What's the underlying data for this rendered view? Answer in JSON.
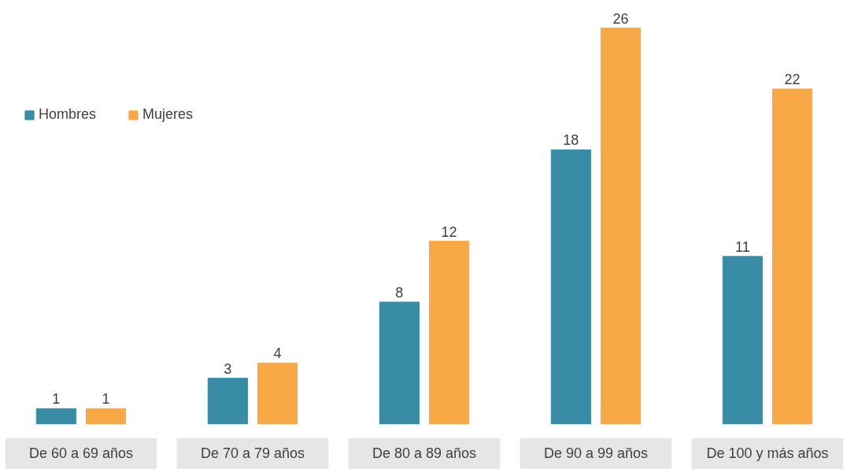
{
  "chart_data": {
    "type": "bar",
    "categories": [
      "De 60 a 69 años",
      "De 70 a 79 años",
      "De 80 a 89 años",
      "De 90 a 99 años",
      "De 100 y más años"
    ],
    "series": [
      {
        "name": "Hombres",
        "color": "#388ca6",
        "values": [
          1,
          3,
          8,
          18,
          11
        ]
      },
      {
        "name": "Mujeres",
        "color": "#f9a846",
        "values": [
          1,
          4,
          12,
          26,
          22
        ]
      }
    ],
    "data_labels": true,
    "legend": "top left",
    "grid": false
  }
}
